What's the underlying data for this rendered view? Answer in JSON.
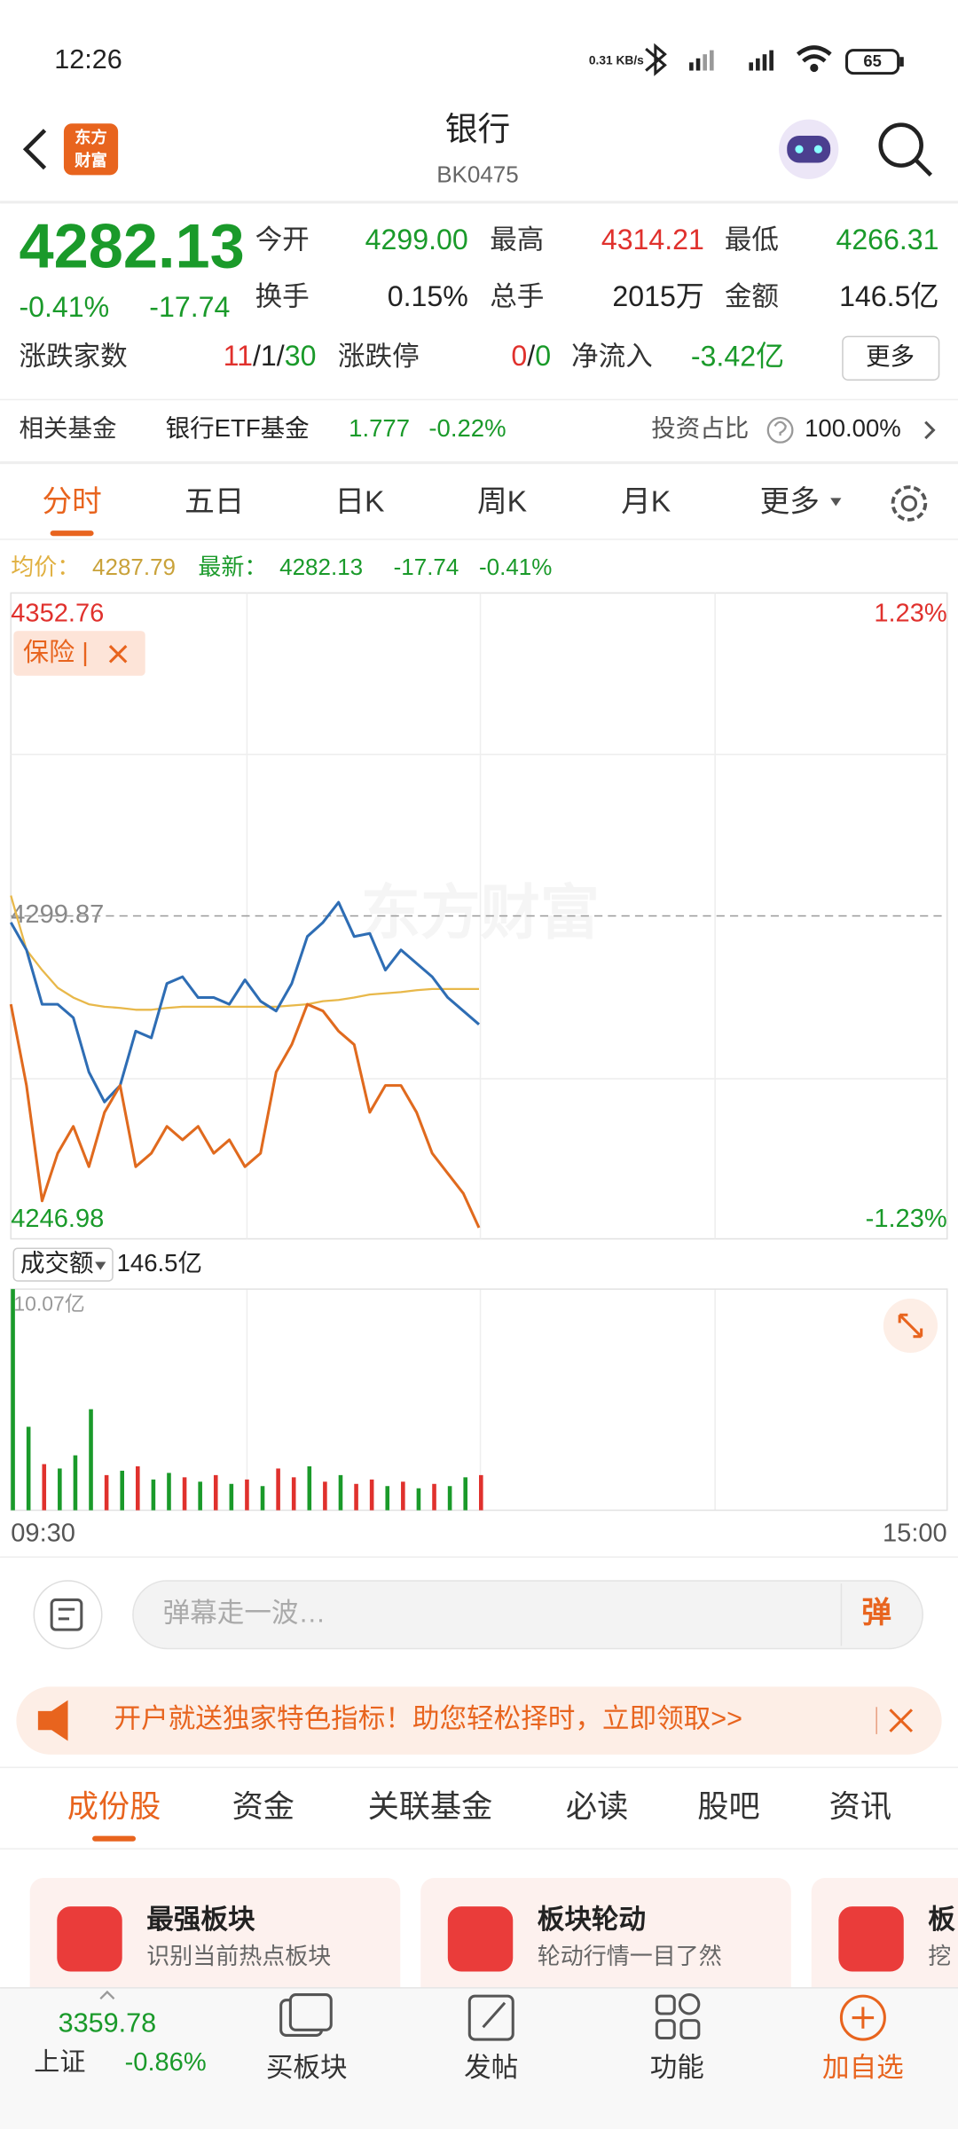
{
  "status_bar": {
    "time": "12:26",
    "net_speed": "0.31 KB/s",
    "battery": "65"
  },
  "header": {
    "logo": [
      "东方",
      "财富"
    ],
    "title": "银行",
    "code": "BK0475"
  },
  "quote": {
    "price": "4282.13",
    "change_pct": "-0.41%",
    "change": "-17.74",
    "stats": [
      {
        "label": "今开",
        "value": "4299.00"
      },
      {
        "label": "最高",
        "value": "4314.21"
      },
      {
        "label": "最低",
        "value": "4266.31"
      },
      {
        "label": "换手",
        "value": "0.15%"
      },
      {
        "label": "总手",
        "value": "2015万"
      },
      {
        "label": "金额",
        "value": "146.5亿"
      }
    ],
    "breadth_label": "涨跌家数",
    "breadth": [
      "11",
      "/1/",
      "30"
    ],
    "limit_label": "涨跌停",
    "limit": [
      "0",
      "/",
      "0"
    ],
    "net_inflow_label": "净流入",
    "net_inflow": "-3.42亿",
    "more": "更多"
  },
  "fund": {
    "label": "相关基金",
    "name": "银行ETF基金",
    "price": "1.777",
    "change": "-0.22%",
    "ratio_label": "投资占比",
    "ratio": "100.00%"
  },
  "period_tabs": [
    "分时",
    "五日",
    "日K",
    "周K",
    "月K",
    "更多"
  ],
  "chart_data": [
    {
      "type": "line",
      "legend_values": {
        "avg": "4287.79",
        "latest": "4282.13",
        "change": "-17.74",
        "change_pct": "-0.41%"
      },
      "tag": "保险 |",
      "watermark": "东方财富",
      "x": [
        0,
        4,
        8,
        12,
        16,
        20,
        24,
        28,
        32,
        36,
        40,
        44,
        48,
        52,
        56,
        60,
        64,
        68,
        72,
        76,
        80,
        84,
        88,
        92,
        96,
        100,
        104,
        108,
        112,
        116,
        120
      ],
      "xlim": [
        0,
        240
      ],
      "xticks": [
        {
          "value": 0,
          "label": "09:30"
        },
        {
          "value": 240,
          "label": "15:00"
        }
      ],
      "ylim": [
        4246.98,
        4352.76
      ],
      "yticks": [
        4246.98,
        4299.87,
        4352.76
      ],
      "y2lim": [
        -1.23,
        1.23
      ],
      "y2ticks": [
        {
          "value": -1.23,
          "label": "-1.23%"
        },
        {
          "value": 1.23,
          "label": "1.23%"
        }
      ],
      "series": [
        {
          "name": "均价：",
          "color": "#e8b84a",
          "values": [
            4303.2,
            4294.3,
            4291.0,
            4288.1,
            4286.5,
            4285.4,
            4285.0,
            4284.8,
            4284.5,
            4284.5,
            4284.8,
            4285.0,
            4285.0,
            4285.0,
            4285.0,
            4285.0,
            4285.0,
            4285.0,
            4285.2,
            4285.4,
            4285.9,
            4286.1,
            4286.5,
            4287.0,
            4287.2,
            4287.4,
            4287.7,
            4287.9,
            4287.9,
            4287.9,
            4287.9
          ]
        },
        {
          "name": "最新：",
          "color": "#2e6db4",
          "values": [
            4298.8,
            4294.3,
            4285.4,
            4285.4,
            4283.2,
            4274.3,
            4269.4,
            4272.1,
            4281.0,
            4279.9,
            4288.8,
            4289.9,
            4286.5,
            4286.5,
            4285.4,
            4289.4,
            4285.9,
            4284.3,
            4288.8,
            4296.5,
            4298.8,
            4302.1,
            4296.5,
            4297.0,
            4291.0,
            4294.3,
            4292.1,
            4289.9,
            4286.5,
            4284.3,
            4282.1
          ]
        },
        {
          "color": "#e06a1e",
          "values": [
            4285.4,
            4272.1,
            4253.2,
            4261.0,
            4265.4,
            4258.8,
            4267.7,
            4272.1,
            4258.8,
            4261.0,
            4265.4,
            4263.2,
            4265.4,
            4261.0,
            4263.2,
            4258.8,
            4261.0,
            4274.3,
            4278.8,
            4285.4,
            4284.3,
            4281.0,
            4278.8,
            4267.7,
            4272.1,
            4272.1,
            4267.7,
            4261.0,
            4257.7,
            4254.4,
            4248.8
          ]
        }
      ]
    },
    {
      "type": "bar",
      "label": "成交额",
      "total": "146.5亿",
      "x": [
        0,
        4,
        8,
        12,
        16,
        20,
        24,
        28,
        32,
        36,
        40,
        44,
        48,
        52,
        56,
        60,
        64,
        68,
        72,
        76,
        80,
        84,
        88,
        92,
        96,
        100,
        104,
        108,
        112,
        116,
        120
      ],
      "xlim": [
        0,
        240
      ],
      "values": [
        10.07,
        3.8,
        2.1,
        1.9,
        2.5,
        4.6,
        1.6,
        1.8,
        2.0,
        1.4,
        1.7,
        1.5,
        1.3,
        1.6,
        1.2,
        1.4,
        1.1,
        1.9,
        1.5,
        2.0,
        1.3,
        1.6,
        1.2,
        1.4,
        1.1,
        1.3,
        1.0,
        1.2,
        1.1,
        1.5,
        1.6
      ],
      "colors": [
        "#1a9a2a",
        "#1a9a2a",
        "#e0312d",
        "#1a9a2a",
        "#1a9a2a",
        "#1a9a2a",
        "#e0312d",
        "#1a9a2a",
        "#e0312d",
        "#1a9a2a",
        "#1a9a2a",
        "#e0312d",
        "#1a9a2a",
        "#e0312d",
        "#1a9a2a",
        "#e0312d",
        "#1a9a2a",
        "#e0312d",
        "#e0312d",
        "#1a9a2a",
        "#e0312d",
        "#1a9a2a",
        "#e0312d",
        "#e0312d",
        "#1a9a2a",
        "#e0312d",
        "#1a9a2a",
        "#e0312d",
        "#1a9a2a",
        "#1a9a2a",
        "#e0312d"
      ],
      "ylim": [
        0,
        10.07
      ],
      "yticks": [
        {
          "value": 10.07,
          "label": "10.07亿"
        }
      ]
    }
  ],
  "danmu": {
    "placeholder": "弹幕走一波…",
    "button": "弹"
  },
  "banner": "开户就送独家特色指标！助您轻松择时，立即领取>>",
  "section_tabs": [
    "成份股",
    "资金",
    "关联基金",
    "必读",
    "股吧",
    "资讯"
  ],
  "cards": [
    {
      "title": "最强板块",
      "subtitle": "识别当前热点板块"
    },
    {
      "title": "板块轮动",
      "subtitle": "轮动行情一目了然"
    },
    {
      "title": "板",
      "subtitle": "挖"
    }
  ],
  "bottom_nav": {
    "index_value": "3359.78",
    "index_name": "上证",
    "index_change": "-0.86%",
    "items": [
      "买板块",
      "发帖",
      "功能",
      "加自选"
    ]
  }
}
